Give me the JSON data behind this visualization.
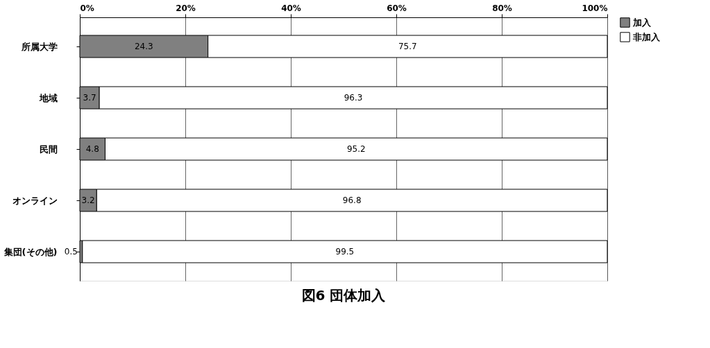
{
  "chart_data": {
    "type": "bar",
    "orientation": "horizontal",
    "stacked": true,
    "title": "図6 団体加入",
    "categories": [
      "所属大学",
      "地域",
      "民間",
      "オンライン",
      "集団(その他)"
    ],
    "series": [
      {
        "name": "加入",
        "color": "#808080",
        "values": [
          24.3,
          3.7,
          4.8,
          3.2,
          0.5
        ]
      },
      {
        "name": "非加入",
        "color": "#ffffff",
        "values": [
          75.7,
          96.3,
          95.2,
          96.8,
          99.5
        ]
      }
    ],
    "xlim": [
      0,
      100
    ],
    "xticks": [
      {
        "value": 0,
        "label": "0%"
      },
      {
        "value": 20,
        "label": "20%"
      },
      {
        "value": 40,
        "label": "40%"
      },
      {
        "value": 60,
        "label": "60%"
      },
      {
        "value": 80,
        "label": "80%"
      },
      {
        "value": 100,
        "label": "100%"
      }
    ],
    "grid": "x",
    "legend": "right",
    "data_labels": true
  }
}
